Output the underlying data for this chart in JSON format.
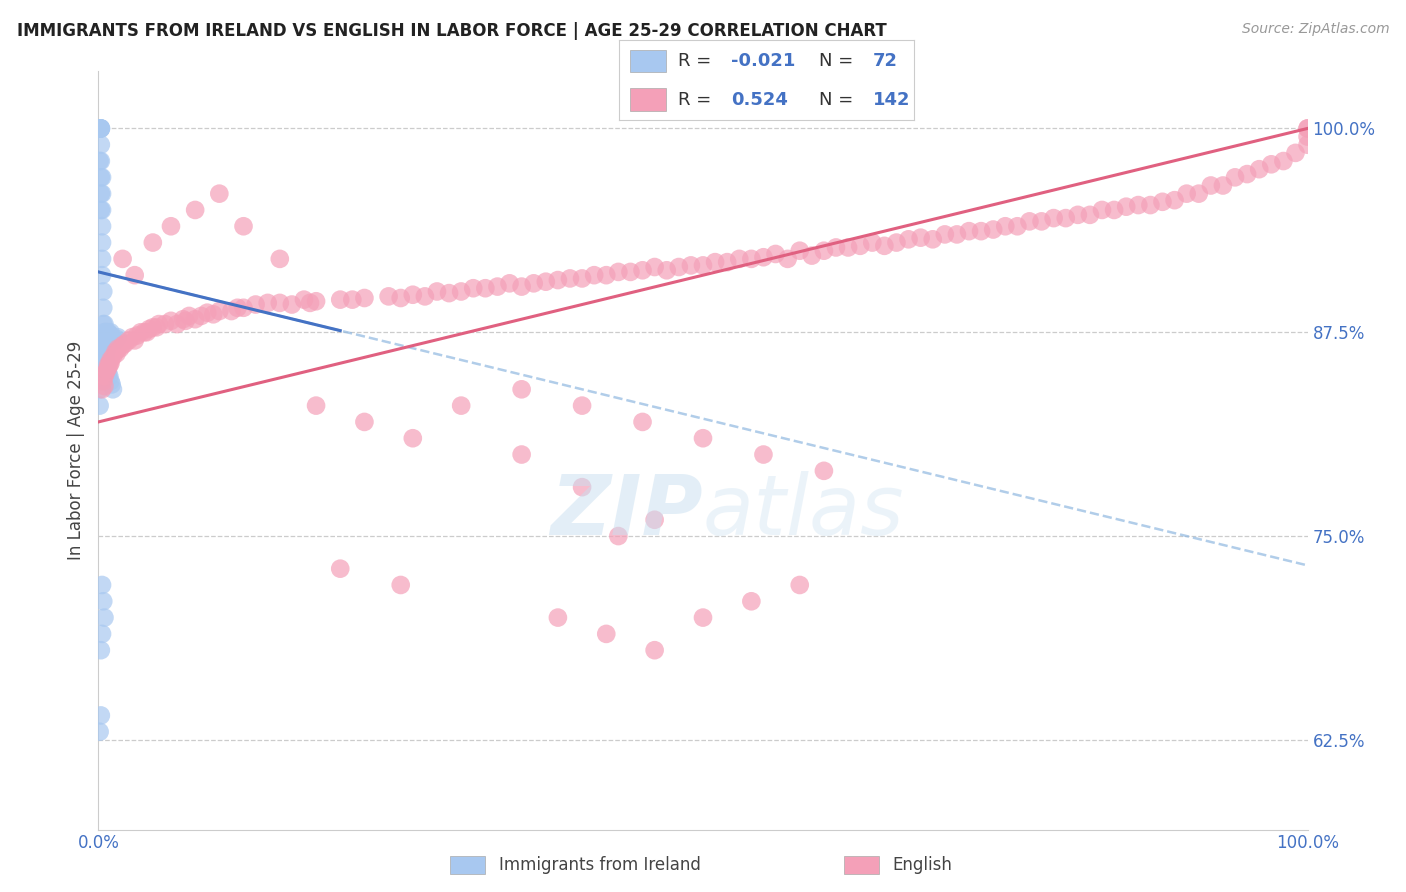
{
  "title": "IMMIGRANTS FROM IRELAND VS ENGLISH IN LABOR FORCE | AGE 25-29 CORRELATION CHART",
  "source": "Source: ZipAtlas.com",
  "ylabel": "In Labor Force | Age 25-29",
  "ytick_labels": [
    "62.5%",
    "75.0%",
    "87.5%",
    "100.0%"
  ],
  "ytick_values": [
    0.625,
    0.75,
    0.875,
    1.0
  ],
  "color_ireland": "#a8c8f0",
  "color_english": "#f4a0b8",
  "color_ireland_line": "#4472c4",
  "color_english_line": "#e06080",
  "color_yaxis": "#4472c4",
  "watermark_color": "#c8dff0",
  "ireland_x": [
    0.001,
    0.001,
    0.001,
    0.001,
    0.001,
    0.001,
    0.001,
    0.001,
    0.002,
    0.002,
    0.002,
    0.002,
    0.002,
    0.002,
    0.002,
    0.002,
    0.002,
    0.003,
    0.003,
    0.003,
    0.003,
    0.003,
    0.003,
    0.003,
    0.004,
    0.004,
    0.004,
    0.004,
    0.004,
    0.005,
    0.005,
    0.005,
    0.005,
    0.006,
    0.006,
    0.006,
    0.007,
    0.007,
    0.008,
    0.008,
    0.009,
    0.009,
    0.01,
    0.01,
    0.011,
    0.012,
    0.013,
    0.014,
    0.015,
    0.016,
    0.001,
    0.001,
    0.001,
    0.002,
    0.002,
    0.003,
    0.004,
    0.005,
    0.006,
    0.007,
    0.008,
    0.009,
    0.01,
    0.011,
    0.012,
    0.003,
    0.004,
    0.005,
    0.002,
    0.003,
    0.001,
    0.002
  ],
  "ireland_y": [
    1.0,
    1.0,
    1.0,
    1.0,
    1.0,
    1.0,
    1.0,
    0.98,
    1.0,
    1.0,
    1.0,
    1.0,
    0.99,
    0.98,
    0.97,
    0.96,
    0.95,
    0.97,
    0.96,
    0.95,
    0.94,
    0.93,
    0.92,
    0.91,
    0.9,
    0.89,
    0.88,
    0.87,
    0.86,
    0.88,
    0.875,
    0.87,
    0.865,
    0.875,
    0.87,
    0.86,
    0.875,
    0.865,
    0.875,
    0.868,
    0.874,
    0.869,
    0.875,
    0.87,
    0.872,
    0.871,
    0.87,
    0.87,
    0.871,
    0.872,
    0.85,
    0.84,
    0.83,
    0.86,
    0.845,
    0.855,
    0.848,
    0.852,
    0.858,
    0.855,
    0.85,
    0.848,
    0.845,
    0.843,
    0.84,
    0.72,
    0.71,
    0.7,
    0.68,
    0.69,
    0.63,
    0.64
  ],
  "english_x": [
    0.003,
    0.004,
    0.005,
    0.005,
    0.006,
    0.007,
    0.008,
    0.008,
    0.009,
    0.01,
    0.01,
    0.012,
    0.014,
    0.015,
    0.016,
    0.018,
    0.02,
    0.022,
    0.025,
    0.028,
    0.03,
    0.032,
    0.035,
    0.038,
    0.04,
    0.042,
    0.045,
    0.048,
    0.05,
    0.055,
    0.06,
    0.065,
    0.07,
    0.072,
    0.075,
    0.08,
    0.085,
    0.09,
    0.095,
    0.1,
    0.11,
    0.115,
    0.12,
    0.13,
    0.14,
    0.15,
    0.16,
    0.17,
    0.175,
    0.18,
    0.2,
    0.21,
    0.22,
    0.24,
    0.25,
    0.26,
    0.27,
    0.28,
    0.29,
    0.3,
    0.31,
    0.32,
    0.33,
    0.34,
    0.35,
    0.36,
    0.37,
    0.38,
    0.39,
    0.4,
    0.41,
    0.42,
    0.43,
    0.44,
    0.45,
    0.46,
    0.47,
    0.48,
    0.49,
    0.5,
    0.51,
    0.52,
    0.53,
    0.54,
    0.55,
    0.56,
    0.57,
    0.58,
    0.59,
    0.6,
    0.61,
    0.62,
    0.63,
    0.64,
    0.65,
    0.66,
    0.67,
    0.68,
    0.69,
    0.7,
    0.71,
    0.72,
    0.73,
    0.74,
    0.75,
    0.76,
    0.77,
    0.78,
    0.79,
    0.8,
    0.81,
    0.82,
    0.83,
    0.84,
    0.85,
    0.86,
    0.87,
    0.88,
    0.89,
    0.9,
    0.91,
    0.92,
    0.93,
    0.94,
    0.95,
    0.96,
    0.97,
    0.98,
    0.99,
    1.0,
    1.0,
    1.0,
    1.0
  ],
  "english_y": [
    0.84,
    0.845,
    0.842,
    0.848,
    0.85,
    0.852,
    0.853,
    0.855,
    0.855,
    0.858,
    0.856,
    0.86,
    0.863,
    0.862,
    0.865,
    0.865,
    0.867,
    0.868,
    0.87,
    0.872,
    0.87,
    0.873,
    0.875,
    0.875,
    0.875,
    0.877,
    0.878,
    0.878,
    0.88,
    0.88,
    0.882,
    0.88,
    0.883,
    0.882,
    0.885,
    0.883,
    0.885,
    0.887,
    0.886,
    0.888,
    0.888,
    0.89,
    0.89,
    0.892,
    0.893,
    0.893,
    0.892,
    0.895,
    0.893,
    0.894,
    0.895,
    0.895,
    0.896,
    0.897,
    0.896,
    0.898,
    0.897,
    0.9,
    0.899,
    0.9,
    0.902,
    0.902,
    0.903,
    0.905,
    0.903,
    0.905,
    0.906,
    0.907,
    0.908,
    0.908,
    0.91,
    0.91,
    0.912,
    0.912,
    0.913,
    0.915,
    0.913,
    0.915,
    0.916,
    0.916,
    0.918,
    0.918,
    0.92,
    0.92,
    0.921,
    0.923,
    0.92,
    0.925,
    0.922,
    0.925,
    0.927,
    0.927,
    0.928,
    0.93,
    0.928,
    0.93,
    0.932,
    0.933,
    0.932,
    0.935,
    0.935,
    0.937,
    0.937,
    0.938,
    0.94,
    0.94,
    0.943,
    0.943,
    0.945,
    0.945,
    0.947,
    0.947,
    0.95,
    0.95,
    0.952,
    0.953,
    0.953,
    0.955,
    0.956,
    0.96,
    0.96,
    0.965,
    0.965,
    0.97,
    0.972,
    0.975,
    0.978,
    0.98,
    0.985,
    0.99,
    0.995,
    1.0,
    1.0
  ],
  "english_scatter_x": [
    0.02,
    0.03,
    0.045,
    0.06,
    0.08,
    0.1,
    0.12,
    0.15,
    0.18,
    0.22,
    0.26,
    0.3,
    0.35,
    0.4,
    0.43,
    0.46,
    0.38,
    0.42,
    0.46,
    0.5,
    0.54,
    0.58,
    0.35,
    0.4,
    0.45,
    0.5,
    0.55,
    0.6,
    0.2,
    0.25
  ],
  "english_scatter_y": [
    0.92,
    0.91,
    0.93,
    0.94,
    0.95,
    0.96,
    0.94,
    0.92,
    0.83,
    0.82,
    0.81,
    0.83,
    0.8,
    0.78,
    0.75,
    0.76,
    0.7,
    0.69,
    0.68,
    0.7,
    0.71,
    0.72,
    0.84,
    0.83,
    0.82,
    0.81,
    0.8,
    0.79,
    0.73,
    0.72
  ]
}
